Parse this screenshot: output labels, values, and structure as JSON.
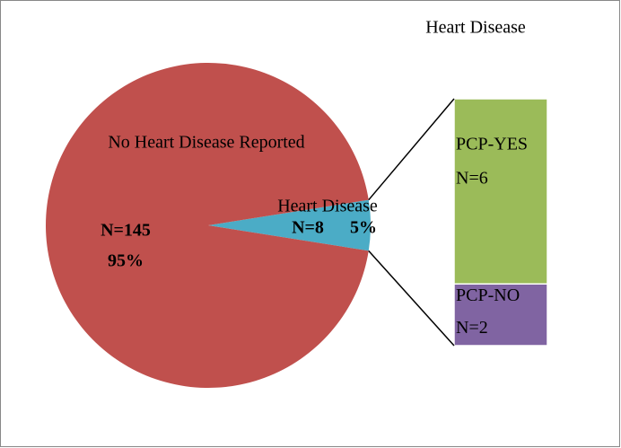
{
  "chart_data": {
    "type": "pie-of-bar",
    "title": "Heart Disease",
    "categories": [
      "No Heart Disease Reported",
      "Heart Disease"
    ],
    "values": [
      95,
      5
    ],
    "value_labels": [
      "95%",
      "5%"
    ],
    "counts": [
      145,
      8
    ],
    "count_labels": [
      "N=145",
      "N=8"
    ],
    "colors": [
      "#c0504d",
      "#4bacc6"
    ],
    "breakdown": {
      "categories": [
        "PCP-YES",
        "PCP-NO"
      ],
      "values": [
        6,
        2
      ],
      "value_labels": [
        "N=6",
        "N=2"
      ],
      "colors": [
        "#9bbb59",
        "#8064a2"
      ]
    }
  }
}
